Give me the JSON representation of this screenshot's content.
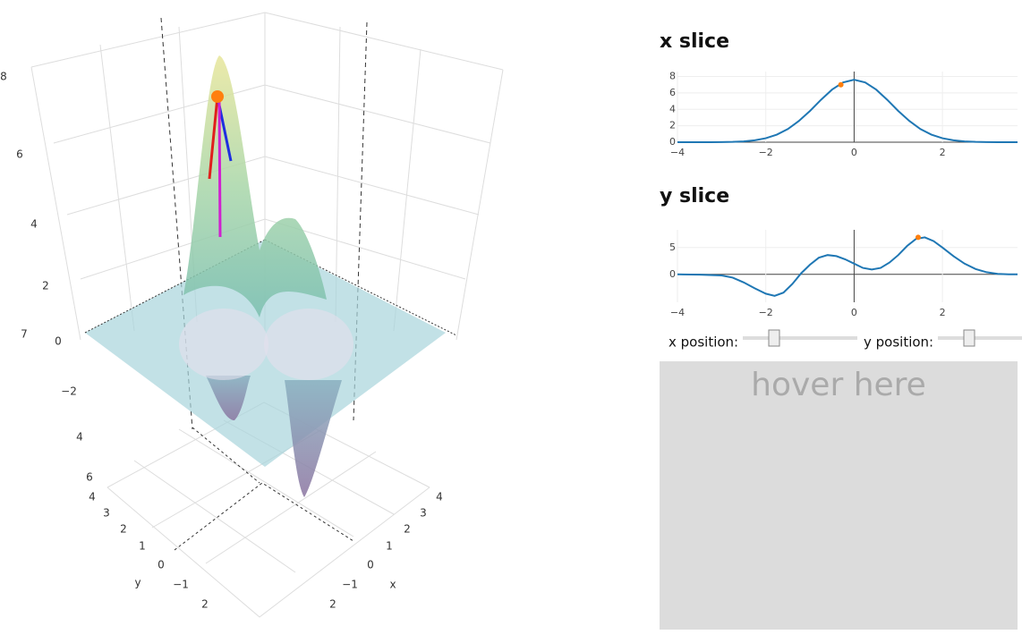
{
  "surface": {
    "axis_labels": [
      "8",
      "6",
      "4",
      "2",
      "7",
      "0",
      "−2",
      "4",
      "6",
      "4",
      "3",
      "2",
      "1",
      "0",
      "y",
      "−1",
      "2",
      "4",
      "3",
      "2",
      "1",
      "0",
      "x",
      "−1",
      "2"
    ]
  },
  "chart_data": [
    {
      "type": "line",
      "title": "x slice",
      "color": "#1f77b4",
      "x": [
        -4,
        -3.75,
        -3.5,
        -3.25,
        -3,
        -2.75,
        -2.5,
        -2.25,
        -2,
        -1.75,
        -1.5,
        -1.25,
        -1,
        -0.75,
        -0.5,
        -0.25,
        0,
        0.25,
        0.5,
        0.75,
        1,
        1.25,
        1.5,
        1.75,
        2,
        2.25,
        2.5,
        2.75,
        3,
        3.25,
        3.5,
        3.7
      ],
      "values": [
        0,
        0,
        0,
        0,
        0.01,
        0.04,
        0.1,
        0.23,
        0.48,
        0.92,
        1.6,
        2.59,
        3.8,
        5.16,
        6.4,
        7.28,
        7.6,
        7.28,
        6.4,
        5.16,
        3.8,
        2.59,
        1.6,
        0.92,
        0.48,
        0.23,
        0.1,
        0.04,
        0.01,
        0,
        0,
        0
      ],
      "marker": {
        "x": -0.3,
        "y": 7.0,
        "color": "#ff7f0e"
      },
      "xlim": [
        -4,
        3.7
      ],
      "ylim": [
        0,
        8.6
      ],
      "xticks": [
        {
          "value": -4,
          "label": "−4"
        },
        {
          "value": -2,
          "label": "−2"
        },
        0,
        2
      ],
      "yticks": [
        0,
        2,
        4,
        6,
        8
      ],
      "grid": true
    },
    {
      "type": "line",
      "title": "y slice",
      "color": "#1f77b4",
      "x": [
        -4,
        -3.5,
        -3,
        -2.75,
        -2.5,
        -2.25,
        -2,
        -1.8,
        -1.6,
        -1.4,
        -1.2,
        -1,
        -0.8,
        -0.6,
        -0.4,
        -0.2,
        0,
        0.2,
        0.4,
        0.6,
        0.8,
        1,
        1.2,
        1.4,
        1.6,
        1.8,
        2,
        2.25,
        2.5,
        2.75,
        3,
        3.25,
        3.5,
        3.7
      ],
      "values": [
        0,
        -0.05,
        -0.2,
        -0.6,
        -1.5,
        -2.6,
        -3.6,
        -4.0,
        -3.4,
        -1.8,
        0.2,
        1.8,
        3.1,
        3.6,
        3.4,
        2.8,
        2.0,
        1.2,
        0.9,
        1.2,
        2.2,
        3.6,
        5.3,
        6.6,
        6.9,
        6.2,
        5.0,
        3.4,
        2.0,
        1.0,
        0.4,
        0.1,
        0,
        0
      ],
      "marker": {
        "x": 1.45,
        "y": 6.9,
        "color": "#ff7f0e"
      },
      "xlim": [
        -4,
        3.7
      ],
      "ylim": [
        -5.2,
        8.3
      ],
      "xticks": [
        {
          "value": -4,
          "label": "−4"
        },
        {
          "value": -2,
          "label": "−2"
        },
        0,
        2
      ],
      "yticks": [
        0,
        5
      ],
      "grid": true
    }
  ],
  "controls": {
    "x_label": "x position:",
    "y_label": "y position:",
    "hover_text": "hover here"
  }
}
